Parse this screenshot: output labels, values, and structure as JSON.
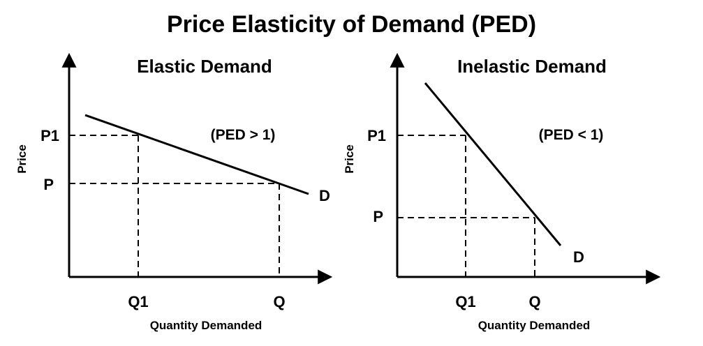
{
  "title": "Price Elasticity of Demand (PED)",
  "colors": {
    "ink": "#000000",
    "background": "#ffffff"
  },
  "panels": [
    {
      "title": "Elastic Demand",
      "annotation": "(PED > 1)",
      "y_axis_label": "Price",
      "x_axis_label": "Quantity Demanded",
      "price_labels": {
        "high": "P1",
        "low": "P"
      },
      "quantity_labels": {
        "low": "Q1",
        "high": "Q"
      },
      "curve_label": "D"
    },
    {
      "title": "Inelastic Demand",
      "annotation": "(PED < 1)",
      "y_axis_label": "Price",
      "x_axis_label": "Quantity Demanded",
      "price_labels": {
        "high": "P1",
        "low": "P"
      },
      "quantity_labels": {
        "low": "Q1",
        "high": "Q"
      },
      "curve_label": "D"
    }
  ]
}
